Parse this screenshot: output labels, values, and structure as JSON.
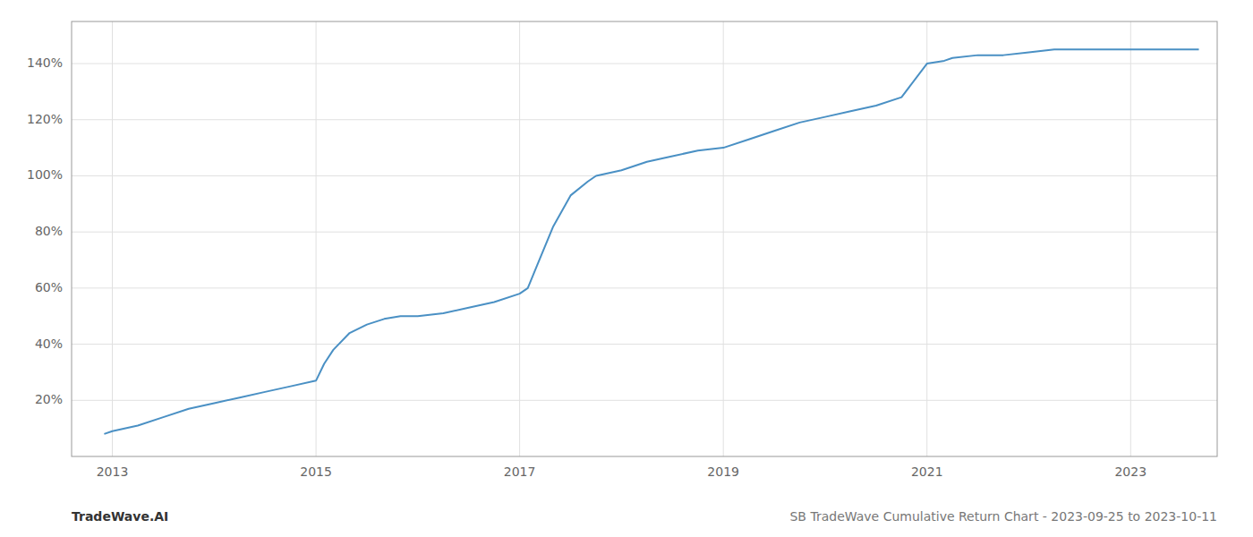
{
  "chart_data": {
    "type": "line",
    "x": [
      2012.92,
      2013.0,
      2013.25,
      2013.5,
      2013.75,
      2014.0,
      2014.25,
      2014.5,
      2014.75,
      2015.0,
      2015.08,
      2015.17,
      2015.33,
      2015.5,
      2015.67,
      2015.83,
      2016.0,
      2016.25,
      2016.5,
      2016.75,
      2017.0,
      2017.08,
      2017.17,
      2017.33,
      2017.5,
      2017.67,
      2017.75,
      2018.0,
      2018.25,
      2018.5,
      2018.75,
      2019.0,
      2019.25,
      2019.5,
      2019.75,
      2020.0,
      2020.25,
      2020.5,
      2020.75,
      2021.0,
      2021.17,
      2021.25,
      2021.5,
      2021.75,
      2022.0,
      2022.25,
      2022.5,
      2022.75,
      2023.0,
      2023.25,
      2023.5,
      2023.67
    ],
    "values": [
      8,
      9,
      11,
      14,
      17,
      19,
      21,
      23,
      25,
      27,
      33,
      38,
      44,
      47,
      49,
      50,
      50,
      51,
      53,
      55,
      58,
      60,
      68,
      82,
      93,
      98,
      100,
      102,
      105,
      107,
      109,
      110,
      113,
      116,
      119,
      121,
      123,
      125,
      128,
      140,
      141,
      142,
      143,
      143,
      144,
      145,
      145,
      145,
      145,
      145,
      145,
      145
    ],
    "color": "#4a90c4",
    "xlim": [
      2012.6,
      2023.85
    ],
    "xticks": [
      2013,
      2015,
      2017,
      2019,
      2021,
      2023
    ],
    "ylim": [
      0,
      155
    ],
    "yticks": [
      {
        "value": 20,
        "label": "20%"
      },
      {
        "value": 40,
        "label": "40%"
      },
      {
        "value": 60,
        "label": "60%"
      },
      {
        "value": 80,
        "label": "80%"
      },
      {
        "value": 100,
        "label": "100%"
      },
      {
        "value": 120,
        "label": "120%"
      },
      {
        "value": 140,
        "label": "140%"
      }
    ],
    "grid": true,
    "annotations": [
      "TradeWave.AI",
      "SB TradeWave Cumulative Return Chart - 2023-09-25 to 2023-10-11"
    ]
  }
}
